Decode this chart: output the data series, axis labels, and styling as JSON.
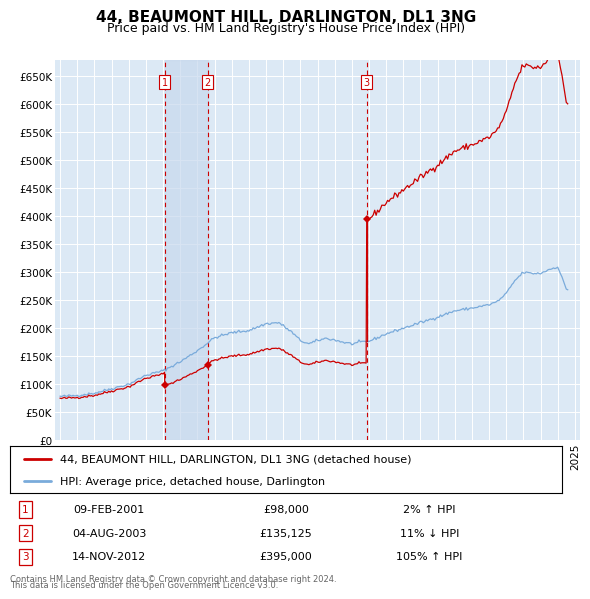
{
  "title": "44, BEAUMONT HILL, DARLINGTON, DL1 3NG",
  "subtitle": "Price paid vs. HM Land Registry's House Price Index (HPI)",
  "title_fontsize": 11,
  "subtitle_fontsize": 9,
  "ylabel_ticks": [
    "£0",
    "£50K",
    "£100K",
    "£150K",
    "£200K",
    "£250K",
    "£300K",
    "£350K",
    "£400K",
    "£450K",
    "£500K",
    "£550K",
    "£600K",
    "£650K"
  ],
  "ytick_values": [
    0,
    50000,
    100000,
    150000,
    200000,
    250000,
    300000,
    350000,
    400000,
    450000,
    500000,
    550000,
    600000,
    650000
  ],
  "ylim": [
    0,
    680000
  ],
  "xlim_start": 1994.7,
  "xlim_end": 2025.3,
  "background_color": "#dce9f5",
  "grid_color": "#ffffff",
  "hpi_line_color": "#7aabdb",
  "price_line_color": "#cc0000",
  "vline_color": "#cc0000",
  "shade_color": "#c8d8ed",
  "legend_entry1": "44, BEAUMONT HILL, DARLINGTON, DL1 3NG (detached house)",
  "legend_entry2": "HPI: Average price, detached house, Darlington",
  "transactions": [
    {
      "id": 1,
      "date_num": 2001.1,
      "price": 98000,
      "label": "09-FEB-2001",
      "price_str": "£98,000",
      "hpi_str": "2% ↑ HPI"
    },
    {
      "id": 2,
      "date_num": 2003.59,
      "price": 135125,
      "label": "04-AUG-2003",
      "price_str": "£135,125",
      "hpi_str": "11% ↓ HPI"
    },
    {
      "id": 3,
      "date_num": 2012.87,
      "price": 395000,
      "label": "14-NOV-2012",
      "price_str": "£395,000",
      "hpi_str": "105% ↑ HPI"
    }
  ],
  "footer_line1": "Contains HM Land Registry data © Crown copyright and database right 2024.",
  "footer_line2": "This data is licensed under the Open Government Licence v3.0."
}
